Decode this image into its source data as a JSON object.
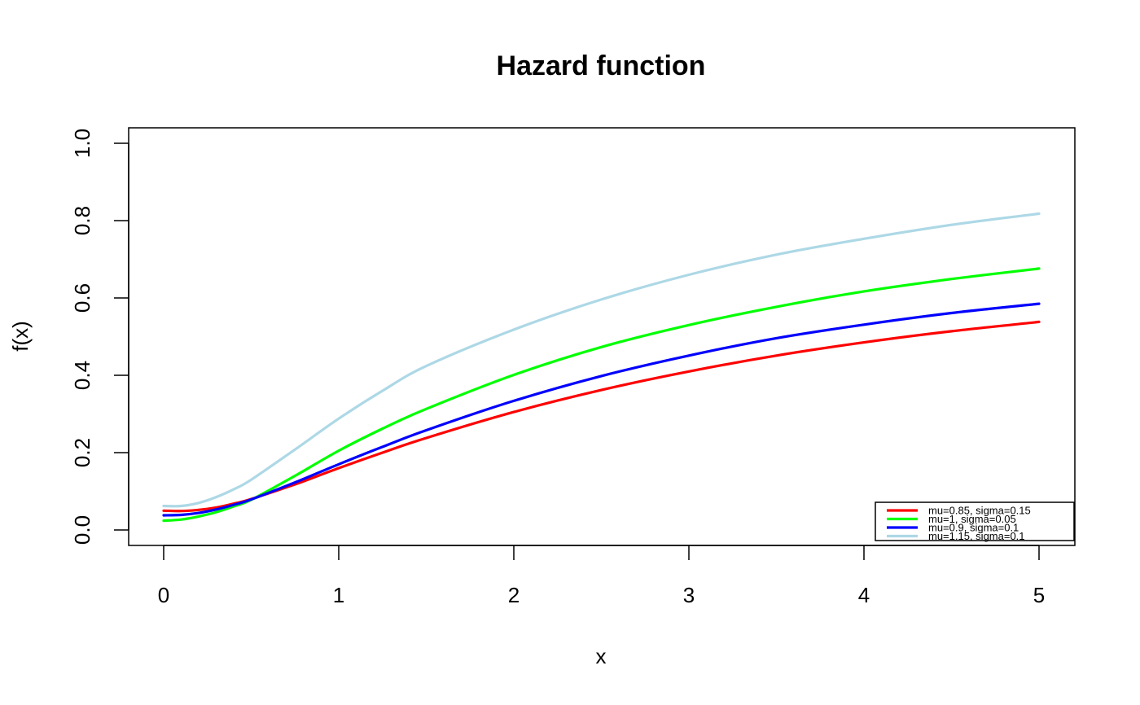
{
  "chart_data": {
    "type": "line",
    "title": "Hazard function",
    "xlabel": "x",
    "ylabel": "f(x)",
    "xlim": [
      0,
      5
    ],
    "ylim": [
      0,
      1
    ],
    "x_ticks": [
      "0",
      "1",
      "2",
      "3",
      "4",
      "5"
    ],
    "y_ticks": [
      "0.0",
      "0.2",
      "0.4",
      "0.6",
      "0.8",
      "1.0"
    ],
    "grid": false,
    "legend_position": "bottom-right",
    "x": [
      0,
      0.1,
      0.2,
      0.3,
      0.4,
      0.5,
      0.75,
      1,
      1.25,
      1.5,
      2,
      2.5,
      3,
      3.5,
      4,
      4.5,
      5
    ],
    "series": [
      {
        "name": "mu=0.85, sigma=0.15",
        "color": "#ff0000",
        "values": [
          0.05,
          0.049,
          0.052,
          0.058,
          0.068,
          0.08,
          0.118,
          0.16,
          0.2,
          0.238,
          0.305,
          0.362,
          0.41,
          0.451,
          0.485,
          0.514,
          0.538
        ]
      },
      {
        "name": "mu=1, sigma=0.05",
        "color": "#00ff00",
        "values": [
          0.024,
          0.027,
          0.035,
          0.046,
          0.061,
          0.078,
          0.14,
          0.205,
          0.262,
          0.313,
          0.401,
          0.473,
          0.53,
          0.577,
          0.617,
          0.649,
          0.676
        ]
      },
      {
        "name": "mu=0.9, sigma=0.1",
        "color": "#0000ff",
        "values": [
          0.038,
          0.039,
          0.044,
          0.053,
          0.065,
          0.079,
          0.123,
          0.17,
          0.215,
          0.258,
          0.334,
          0.398,
          0.451,
          0.496,
          0.531,
          0.561,
          0.585
        ]
      },
      {
        "name": "mu=1.15, sigma=0.1",
        "color": "#add8e6",
        "values": [
          0.062,
          0.062,
          0.07,
          0.085,
          0.105,
          0.13,
          0.208,
          0.288,
          0.36,
          0.424,
          0.518,
          0.596,
          0.66,
          0.712,
          0.753,
          0.789,
          0.818
        ]
      }
    ]
  }
}
